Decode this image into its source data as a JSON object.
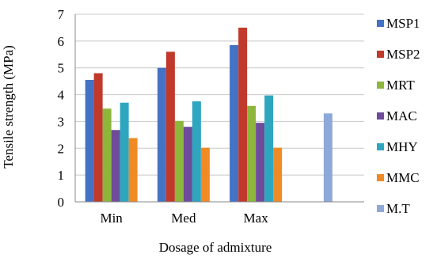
{
  "chart_data": {
    "type": "bar",
    "title": "",
    "xlabel": "Dosage of admixture",
    "ylabel": "Tensile strength (MPa)",
    "ylim": [
      0,
      7
    ],
    "yticks": [
      0,
      1,
      2,
      3,
      4,
      5,
      6,
      7
    ],
    "grid": true,
    "legend_position": "right",
    "categories": [
      "Min",
      "Med",
      "Max",
      ""
    ],
    "series": [
      {
        "name": "MSP1",
        "color": "#4472C4",
        "values": [
          4.55,
          5.0,
          5.85,
          null
        ]
      },
      {
        "name": "MSP2",
        "color": "#C0392B",
        "values": [
          4.8,
          5.6,
          6.5,
          null
        ]
      },
      {
        "name": "MRT",
        "color": "#8DB63C",
        "values": [
          3.48,
          3.02,
          3.58,
          null
        ]
      },
      {
        "name": "MAC",
        "color": "#6E4C9A",
        "values": [
          2.68,
          2.8,
          2.95,
          null
        ]
      },
      {
        "name": "MHY",
        "color": "#2FA6C0",
        "values": [
          3.7,
          3.75,
          3.97,
          null
        ]
      },
      {
        "name": "MMC",
        "color": "#F08A24",
        "values": [
          2.38,
          2.02,
          2.02,
          null
        ]
      },
      {
        "name": "M.T",
        "color": "#8EA9D8",
        "values": [
          null,
          null,
          null,
          3.3
        ]
      }
    ]
  }
}
